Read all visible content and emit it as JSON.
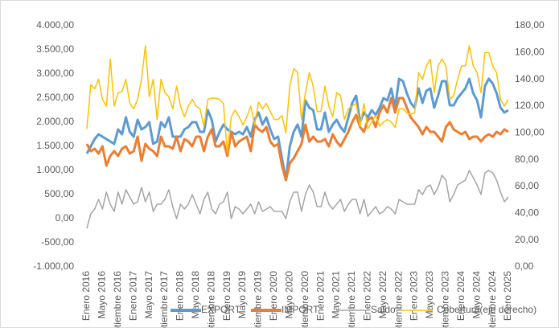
{
  "chart_data": {
    "type": "line",
    "categories": [
      "Enero 2016",
      null,
      null,
      null,
      "Mayo 2016",
      null,
      null,
      null,
      "Septiembre 2016",
      null,
      null,
      null,
      "Enero 2017",
      null,
      null,
      null,
      "Mayo 2017",
      null,
      null,
      null,
      "Septiembre 2017",
      null,
      null,
      null,
      "Enero 2018",
      null,
      null,
      null,
      "Mayo 2018",
      null,
      null,
      null,
      "Septiembre 2018",
      null,
      null,
      null,
      "Enero 2019",
      null,
      null,
      null,
      "Mayo 2019",
      null,
      null,
      null,
      "Septiembre 2019",
      null,
      null,
      null,
      "Enero 2020",
      null,
      null,
      null,
      "Mayo 2020",
      null,
      null,
      null,
      "Septiembre 2020",
      null,
      null,
      null,
      "Enero 2021",
      null,
      null,
      null,
      "Mayo 2021",
      null,
      null,
      null,
      "Septiembre 2021",
      null,
      null,
      null,
      "Enero 2022",
      null,
      null,
      null,
      "Mayo 2022",
      null,
      null,
      null,
      "Septiembre 2022",
      null,
      null,
      null,
      "Enero 2023",
      null,
      null,
      null,
      "Mayo 2023",
      null,
      null,
      null,
      "Septiembre 2023",
      null,
      null,
      null,
      "Enero 2024",
      null,
      null,
      null,
      "Mayo 2024",
      null,
      null,
      null,
      "Septiembre 2024",
      null,
      null,
      null,
      "Enero 2025"
    ],
    "series": [
      {
        "name": "EXPORT",
        "color": "#5b9bd5",
        "values": [
          1350,
          1500,
          1650,
          1750,
          1700,
          1650,
          1600,
          1550,
          1850,
          1750,
          2100,
          1800,
          1700,
          2050,
          1850,
          1900,
          2000,
          1550,
          1600,
          2000,
          1900,
          2100,
          1700,
          1700,
          1700,
          1850,
          1900,
          2000,
          2000,
          1800,
          1800,
          2250,
          2050,
          1600,
          1800,
          1950,
          1850,
          1800,
          1750,
          1800,
          1750,
          1900,
          1700,
          2050,
          2200,
          1950,
          2100,
          1850,
          1650,
          1700,
          1250,
          800,
          1500,
          1800,
          1950,
          1700,
          2450,
          2300,
          2250,
          1850,
          1850,
          2200,
          1800,
          1950,
          2050,
          1900,
          1800,
          2100,
          2400,
          2550,
          2000,
          2200,
          2100,
          2250,
          2150,
          2300,
          2500,
          2450,
          2700,
          2300,
          2900,
          2850,
          2600,
          2400,
          2300,
          2700,
          2400,
          2650,
          2700,
          2300,
          2550,
          2850,
          2850,
          2350,
          2350,
          2500,
          2600,
          2700,
          2900,
          2600,
          2450,
          2100,
          2750,
          2900,
          2800,
          2600,
          2300,
          2200,
          2250
        ]
      },
      {
        "name": "IMPORT",
        "color": "#ed7d31",
        "values": [
          1550,
          1400,
          1450,
          1350,
          1500,
          1100,
          1300,
          1400,
          1300,
          1450,
          1500,
          1350,
          1400,
          1700,
          1200,
          1550,
          1450,
          1400,
          1300,
          1700,
          1500,
          1500,
          1450,
          1700,
          1400,
          1650,
          1600,
          1500,
          1700,
          1700,
          1400,
          1700,
          1850,
          1500,
          1500,
          1600,
          1300,
          1800,
          1500,
          1600,
          1650,
          1700,
          1400,
          1950,
          1850,
          1800,
          1900,
          1600,
          1500,
          1550,
          1100,
          800,
          1150,
          1250,
          1400,
          1550,
          1950,
          1600,
          1700,
          1600,
          1600,
          1650,
          1500,
          1750,
          1600,
          1500,
          1650,
          1800,
          2000,
          2150,
          1900,
          1800,
          2050,
          2100,
          1900,
          2200,
          2350,
          2200,
          2500,
          2200,
          2500,
          2500,
          2300,
          2100,
          2000,
          1900,
          1750,
          1900,
          1800,
          1800,
          1700,
          1600,
          1900,
          2000,
          1850,
          1800,
          1750,
          1800,
          1650,
          1700,
          1700,
          1600,
          1700,
          1750,
          1700,
          1800,
          1750,
          1850,
          1800
        ]
      },
      {
        "name": "Saldo",
        "color": "#a5a5a5",
        "values": [
          -200,
          100,
          200,
          400,
          200,
          550,
          300,
          150,
          550,
          300,
          600,
          450,
          300,
          350,
          650,
          350,
          550,
          150,
          300,
          300,
          400,
          600,
          250,
          0,
          300,
          200,
          300,
          500,
          300,
          100,
          400,
          550,
          200,
          100,
          300,
          350,
          550,
          0,
          250,
          200,
          100,
          200,
          300,
          100,
          350,
          150,
          200,
          250,
          150,
          150,
          150,
          0,
          350,
          550,
          550,
          150,
          500,
          700,
          550,
          250,
          250,
          550,
          300,
          200,
          300,
          400,
          150,
          300,
          400,
          400,
          100,
          400,
          50,
          150,
          250,
          100,
          150,
          250,
          200,
          100,
          400,
          350,
          300,
          300,
          300,
          600,
          500,
          650,
          700,
          500,
          650,
          900,
          800,
          350,
          500,
          700,
          750,
          800,
          1000,
          850,
          700,
          500,
          950,
          1000,
          950,
          800,
          550,
          350,
          450
        ]
      },
      {
        "name": "Cobertura(eje derecho)",
        "color": "#ffc000",
        "axis": "y2",
        "values": [
          103,
          136,
          133,
          140,
          125,
          120,
          155,
          120,
          130,
          131,
          140,
          122,
          118,
          125,
          140,
          165,
          127,
          140,
          110,
          140,
          130,
          127,
          118,
          135,
          120,
          112,
          120,
          125,
          120,
          118,
          105,
          125,
          126,
          126,
          125,
          122,
          85,
          112,
          117,
          112,
          106,
          112,
          120,
          106,
          123,
          118,
          122,
          116,
          110,
          110,
          113,
          100,
          135,
          148,
          145,
          110,
          130,
          145,
          135,
          116,
          116,
          135,
          120,
          112,
          130,
          128,
          110,
          118,
          120,
          122,
          105,
          122,
          103,
          108,
          113,
          105,
          108,
          110,
          108,
          104,
          118,
          118,
          115,
          114,
          115,
          145,
          140,
          150,
          155,
          130,
          150,
          155,
          150,
          125,
          128,
          140,
          150,
          150,
          165,
          150,
          145,
          130,
          160,
          160,
          150,
          145,
          125,
          120,
          125
        ]
      }
    ],
    "ylim": [
      -1000,
      4000
    ],
    "yticks": [
      {
        "value": -1000,
        "label": "-1.000,00"
      },
      {
        "value": -500,
        "label": "-500,00"
      },
      {
        "value": 0,
        "label": "0,00"
      },
      {
        "value": 500,
        "label": "500,00"
      },
      {
        "value": 1000,
        "label": "1.000,00"
      },
      {
        "value": 1500,
        "label": "1.500,00"
      },
      {
        "value": 2000,
        "label": "2.000,00"
      },
      {
        "value": 2500,
        "label": "2.500,00"
      },
      {
        "value": 3000,
        "label": "3.000,00"
      },
      {
        "value": 3500,
        "label": "3.500,00"
      },
      {
        "value": 4000,
        "label": "4.000,00"
      }
    ],
    "y2lim": [
      0,
      180
    ],
    "y2ticks": [
      {
        "value": 0,
        "label": "0,00"
      },
      {
        "value": 20,
        "label": "20,00"
      },
      {
        "value": 40,
        "label": "40,00"
      },
      {
        "value": 60,
        "label": "60,00"
      },
      {
        "value": 80,
        "label": "80,00"
      },
      {
        "value": 100,
        "label": "100,00"
      },
      {
        "value": 120,
        "label": "120,00"
      },
      {
        "value": 140,
        "label": "140,00"
      },
      {
        "value": 160,
        "label": "160,00"
      },
      {
        "value": 180,
        "label": "180,00"
      }
    ],
    "legend": "bottom"
  }
}
